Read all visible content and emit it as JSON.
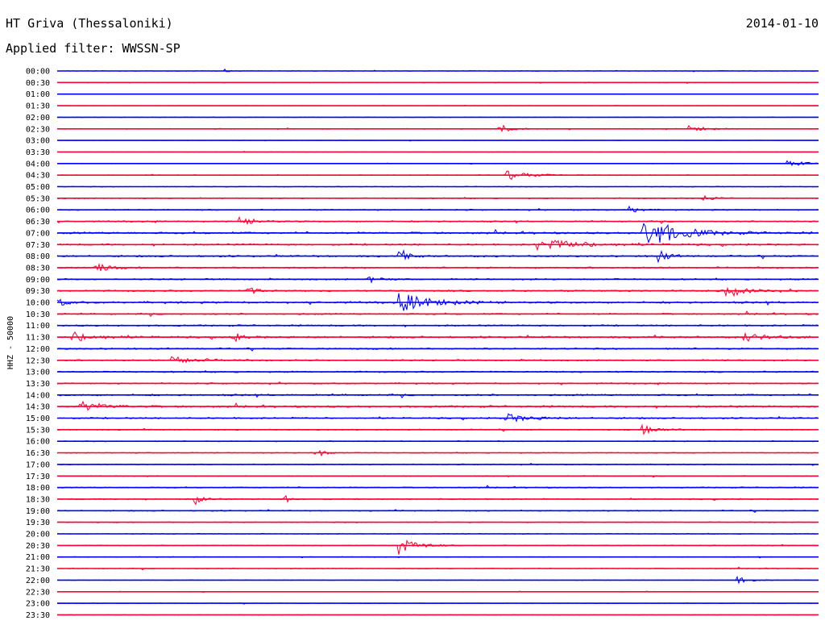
{
  "header": {
    "station": "HT Griva (Thessaloniki)",
    "date": "2014-01-10",
    "filter": "Applied filter: WWSSN-SP"
  },
  "chart_data": {
    "type": "line",
    "title": "HT Griva (Thessaloniki)",
    "ylabel": "HHZ - 50000",
    "xlabel": "",
    "colors": [
      "#0000ff",
      "#ff0033"
    ],
    "grid": false,
    "tick_labels": [
      "00:00",
      "00:30",
      "01:00",
      "01:30",
      "02:00",
      "02:30",
      "03:00",
      "03:30",
      "04:00",
      "04:30",
      "05:00",
      "05:30",
      "06:00",
      "06:30",
      "07:00",
      "07:30",
      "08:00",
      "08:30",
      "09:00",
      "09:30",
      "10:00",
      "10:30",
      "11:00",
      "11:30",
      "12:00",
      "12:30",
      "13:00",
      "13:30",
      "14:00",
      "14:30",
      "15:00",
      "15:30",
      "16:00",
      "16:30",
      "17:00",
      "17:30",
      "18:00",
      "18:30",
      "19:00",
      "19:30",
      "20:00",
      "20:30",
      "21:00",
      "21:30",
      "22:00",
      "22:30",
      "23:00",
      "23:30"
    ],
    "noise": [
      0.3,
      0.3,
      0.2,
      0.2,
      0.3,
      0.4,
      0.2,
      0.2,
      0.3,
      0.4,
      0.4,
      0.6,
      0.6,
      0.7,
      1.0,
      0.9,
      0.9,
      0.8,
      0.8,
      0.9,
      1.0,
      0.8,
      0.8,
      1.0,
      0.8,
      0.8,
      0.8,
      0.7,
      0.9,
      1.0,
      0.8,
      0.6,
      0.5,
      0.5,
      0.5,
      0.4,
      0.6,
      0.6,
      0.6,
      0.5,
      0.4,
      0.4,
      0.4,
      0.4,
      0.3,
      0.3,
      0.3,
      0.3
    ],
    "events": [
      {
        "row": 0,
        "t": 0.22,
        "amp": 2,
        "dur": 0.005
      },
      {
        "row": 5,
        "t": 0.58,
        "amp": 6,
        "dur": 0.015
      },
      {
        "row": 5,
        "t": 0.83,
        "amp": 4,
        "dur": 0.02
      },
      {
        "row": 8,
        "t": 0.96,
        "amp": 3,
        "dur": 0.03
      },
      {
        "row": 9,
        "t": 0.59,
        "amp": 5,
        "dur": 0.03
      },
      {
        "row": 11,
        "t": 0.85,
        "amp": 6,
        "dur": 0.01
      },
      {
        "row": 12,
        "t": 0.75,
        "amp": 7,
        "dur": 0.01
      },
      {
        "row": 13,
        "t": 0.24,
        "amp": 5,
        "dur": 0.02
      },
      {
        "row": 14,
        "t": 0.77,
        "amp": 20,
        "dur": 0.04
      },
      {
        "row": 15,
        "t": 0.63,
        "amp": 8,
        "dur": 0.05
      },
      {
        "row": 16,
        "t": 0.45,
        "amp": 8,
        "dur": 0.01
      },
      {
        "row": 16,
        "t": 0.79,
        "amp": 10,
        "dur": 0.01
      },
      {
        "row": 17,
        "t": 0.05,
        "amp": 7,
        "dur": 0.015
      },
      {
        "row": 18,
        "t": 0.41,
        "amp": 5,
        "dur": 0.01
      },
      {
        "row": 19,
        "t": 0.25,
        "amp": 7,
        "dur": 0.01
      },
      {
        "row": 19,
        "t": 0.88,
        "amp": 8,
        "dur": 0.02
      },
      {
        "row": 20,
        "t": 0.0,
        "amp": 5,
        "dur": 0.01
      },
      {
        "row": 20,
        "t": 0.45,
        "amp": 11,
        "dur": 0.04
      },
      {
        "row": 23,
        "t": 0.02,
        "amp": 6,
        "dur": 0.03
      },
      {
        "row": 23,
        "t": 0.23,
        "amp": 7,
        "dur": 0.01
      },
      {
        "row": 23,
        "t": 0.9,
        "amp": 5,
        "dur": 0.03
      },
      {
        "row": 25,
        "t": 0.15,
        "amp": 5,
        "dur": 0.03
      },
      {
        "row": 29,
        "t": 0.03,
        "amp": 6,
        "dur": 0.03
      },
      {
        "row": 30,
        "t": 0.59,
        "amp": 5,
        "dur": 0.03
      },
      {
        "row": 31,
        "t": 0.77,
        "amp": 5,
        "dur": 0.02
      },
      {
        "row": 33,
        "t": 0.34,
        "amp": 7,
        "dur": 0.01
      },
      {
        "row": 37,
        "t": 0.18,
        "amp": 8,
        "dur": 0.01
      },
      {
        "row": 37,
        "t": 0.3,
        "amp": 6,
        "dur": 0.005
      },
      {
        "row": 41,
        "t": 0.45,
        "amp": 12,
        "dur": 0.02
      },
      {
        "row": 44,
        "t": 0.89,
        "amp": 5,
        "dur": 0.015
      }
    ]
  }
}
